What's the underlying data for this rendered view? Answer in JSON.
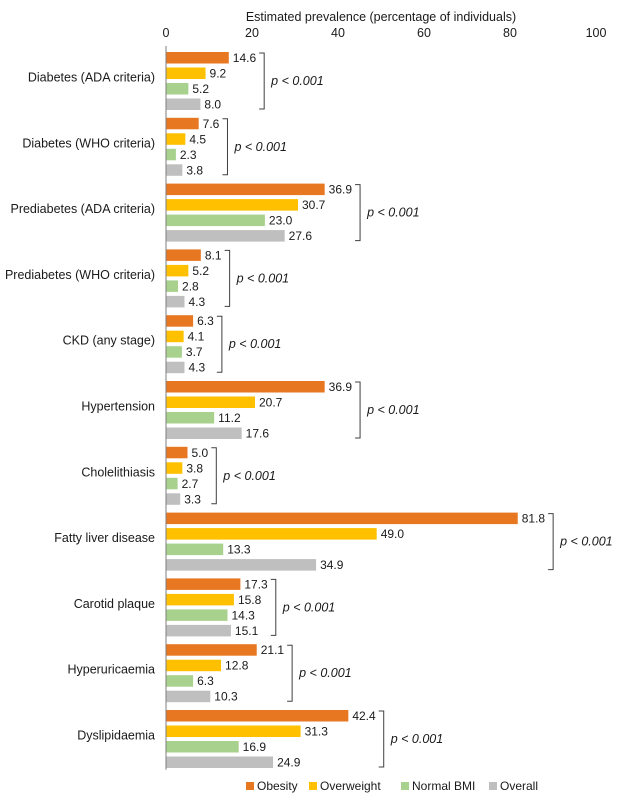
{
  "chart_data": {
    "type": "bar",
    "orientation": "horizontal",
    "xlabel": "Estimated prevalence (percentage of individuals)",
    "xlim": [
      0,
      100
    ],
    "xticks": [
      0,
      20,
      40,
      60,
      80,
      100
    ],
    "grid": false,
    "legend_position": "bottom",
    "categories": [
      "Diabetes (ADA criteria)",
      "Diabetes (WHO criteria)",
      "Prediabetes (ADA criteria)",
      "Prediabetes (WHO criteria)",
      "CKD (any stage)",
      "Hypertension",
      "Cholelithiasis",
      "Fatty liver disease",
      "Carotid plaque",
      "Hyperuricaemia",
      "Dyslipidaemia"
    ],
    "series": [
      {
        "name": "Obesity",
        "color": "#E87722",
        "values": [
          14.6,
          7.6,
          36.9,
          8.1,
          6.3,
          36.9,
          5.0,
          81.8,
          17.3,
          21.1,
          42.4
        ]
      },
      {
        "name": "Overweight",
        "color": "#FFC000",
        "values": [
          9.2,
          4.5,
          30.7,
          5.2,
          4.1,
          20.7,
          3.8,
          49.0,
          15.8,
          12.8,
          31.3
        ]
      },
      {
        "name": "Normal BMI",
        "color": "#A9D18E",
        "values": [
          5.2,
          2.3,
          23.0,
          2.8,
          3.7,
          11.2,
          2.7,
          13.3,
          14.3,
          6.3,
          16.9
        ]
      },
      {
        "name": "Overall",
        "color": "#BFBFBF",
        "values": [
          8.0,
          3.8,
          27.6,
          4.3,
          4.3,
          17.6,
          3.3,
          34.9,
          15.1,
          10.3,
          24.9
        ]
      }
    ],
    "data_labels": [
      [
        "14.6",
        "9.2",
        "5.2",
        "8.0"
      ],
      [
        "7.6",
        "4.5",
        "2.3",
        "3.8"
      ],
      [
        "36.9",
        "30.7",
        "23.0",
        "27.6"
      ],
      [
        "8.1",
        "5.2",
        "2.8",
        "4.3"
      ],
      [
        "6.3",
        "4.1",
        "3.7",
        "4.3"
      ],
      [
        "36.9",
        "20.7",
        "11.2",
        "17.6"
      ],
      [
        "5.0",
        "3.8",
        "2.7",
        "3.3"
      ],
      [
        "81.8",
        "49.0",
        "13.3",
        "34.9"
      ],
      [
        "17.3",
        "15.8",
        "14.3",
        "15.1"
      ],
      [
        "21.1",
        "12.8",
        "6.3",
        "10.3"
      ],
      [
        "42.4",
        "31.3",
        "16.9",
        "24.9"
      ]
    ],
    "p_value_label": "p < 0.001",
    "annotations": [
      "p < 0.001",
      "p < 0.001",
      "p < 0.001",
      "p < 0.001",
      "p < 0.001",
      "p < 0.001",
      "p < 0.001",
      "p < 0.001",
      "p < 0.001",
      "p < 0.001",
      "p < 0.001"
    ]
  }
}
